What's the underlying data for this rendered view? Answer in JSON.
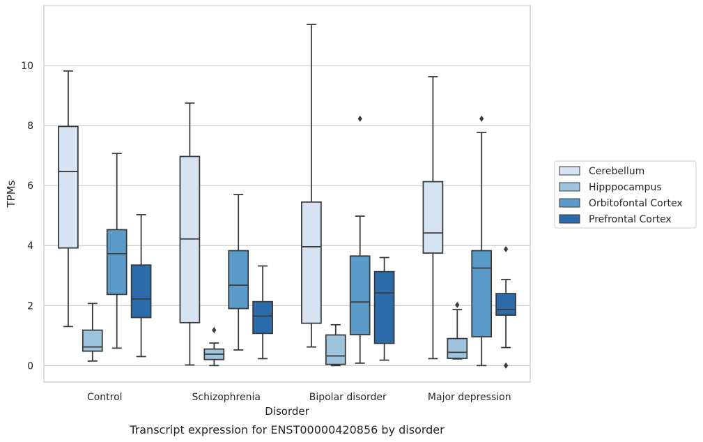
{
  "caption": "Transcript expression for ENST00000420856 by disorder",
  "chart_data": {
    "type": "boxplot",
    "xlabel": "Disorder",
    "ylabel": "TPMs",
    "categories": [
      "Control",
      "Schizophrenia",
      "Bipolar disorder",
      "Major depression"
    ],
    "ylim": [
      -0.55,
      12.0
    ],
    "yticks": [
      0,
      2,
      4,
      6,
      8,
      10
    ],
    "ytick_labels": [
      "0",
      "2",
      "4",
      "6",
      "8",
      "10"
    ],
    "grid": true,
    "legend_position": "right",
    "series": [
      {
        "name": "Cerebellum",
        "color": "#d6e3f2",
        "boxes": [
          {
            "whislo": 1.3,
            "q1": 3.92,
            "med": 6.47,
            "q3": 7.97,
            "whishi": 9.82,
            "fliers": []
          },
          {
            "whislo": 0.02,
            "q1": 1.43,
            "med": 4.22,
            "q3": 6.97,
            "whishi": 8.75,
            "fliers": []
          },
          {
            "whislo": 0.62,
            "q1": 1.41,
            "med": 3.96,
            "q3": 5.45,
            "whishi": 11.37,
            "fliers": []
          },
          {
            "whislo": 0.23,
            "q1": 3.75,
            "med": 4.42,
            "q3": 6.13,
            "whishi": 9.63,
            "fliers": []
          }
        ]
      },
      {
        "name": "Hipppocampus",
        "color": "#9ec4de",
        "boxes": [
          {
            "whislo": 0.15,
            "q1": 0.48,
            "med": 0.62,
            "q3": 1.18,
            "whishi": 2.07,
            "fliers": []
          },
          {
            "whislo": 0.0,
            "q1": 0.2,
            "med": 0.38,
            "q3": 0.55,
            "whishi": 0.75,
            "fliers": [
              1.18
            ]
          },
          {
            "whislo": 0.0,
            "q1": 0.04,
            "med": 0.32,
            "q3": 1.02,
            "whishi": 1.36,
            "fliers": []
          },
          {
            "whislo": 0.22,
            "q1": 0.24,
            "med": 0.44,
            "q3": 0.9,
            "whishi": 1.87,
            "fliers": [
              2.02
            ]
          }
        ]
      },
      {
        "name": "Orbitofontal Cortex",
        "color": "#5a9bc9",
        "boxes": [
          {
            "whislo": 0.58,
            "q1": 2.37,
            "med": 3.73,
            "q3": 4.53,
            "whishi": 7.07,
            "fliers": []
          },
          {
            "whislo": 0.52,
            "q1": 1.9,
            "med": 2.68,
            "q3": 3.83,
            "whishi": 5.7,
            "fliers": []
          },
          {
            "whislo": 0.08,
            "q1": 1.03,
            "med": 2.12,
            "q3": 3.65,
            "whishi": 4.98,
            "fliers": [
              8.23
            ]
          },
          {
            "whislo": 0.0,
            "q1": 0.96,
            "med": 3.25,
            "q3": 3.83,
            "whishi": 7.77,
            "fliers": [
              8.23
            ]
          }
        ]
      },
      {
        "name": "Prefrontal Cortex",
        "color": "#2b6ba9",
        "boxes": [
          {
            "whislo": 0.3,
            "q1": 1.6,
            "med": 2.22,
            "q3": 3.35,
            "whishi": 5.03,
            "fliers": []
          },
          {
            "whislo": 0.23,
            "q1": 1.07,
            "med": 1.65,
            "q3": 2.13,
            "whishi": 3.32,
            "fliers": []
          },
          {
            "whislo": 0.18,
            "q1": 0.74,
            "med": 2.42,
            "q3": 3.13,
            "whishi": 3.6,
            "fliers": []
          },
          {
            "whislo": 0.6,
            "q1": 1.68,
            "med": 1.87,
            "q3": 2.4,
            "whishi": 2.87,
            "fliers": [
              3.88,
              0.0
            ]
          }
        ]
      }
    ]
  }
}
